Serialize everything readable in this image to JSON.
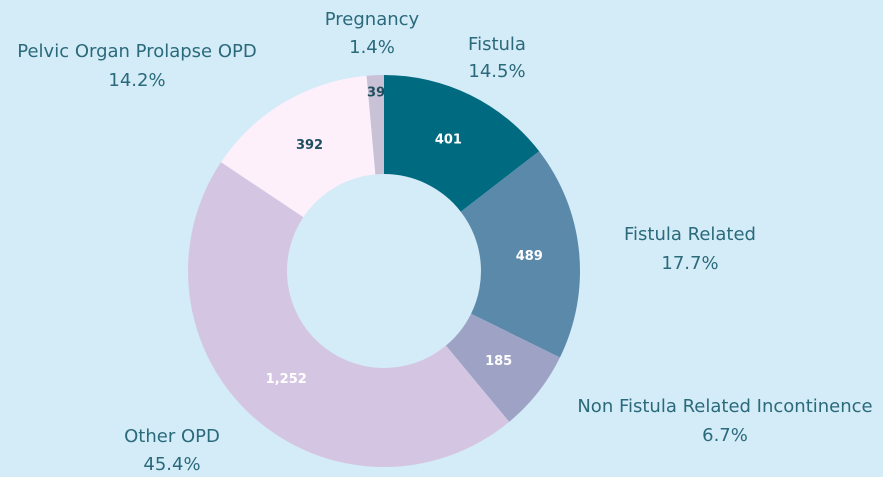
{
  "chart_data": {
    "type": "donut",
    "categories": [
      "Fistula",
      "Fistula Related",
      "Non Fistula Related Incontinence",
      "Other OPD",
      "Pelvic Organ Prolapse OPD",
      "Pregnancy"
    ],
    "values": [
      401,
      489,
      185,
      1252,
      392,
      39
    ],
    "value_labels": [
      "401",
      "489",
      "185",
      "1,252",
      "392",
      "39"
    ],
    "percent_labels": [
      "14.5%",
      "17.7%",
      "6.7%",
      "45.4%",
      "14.2%",
      "1.4%"
    ],
    "colors": [
      "#006b80",
      "#5b89aa",
      "#9ea3c6",
      "#d4c6e2",
      "#fdf0fb",
      "#c9c1d6"
    ],
    "label_colors": [
      "#ffffff",
      "#ffffff",
      "#ffffff",
      "#ffffff",
      "#1f4f5f",
      "#1f4f5f"
    ]
  }
}
